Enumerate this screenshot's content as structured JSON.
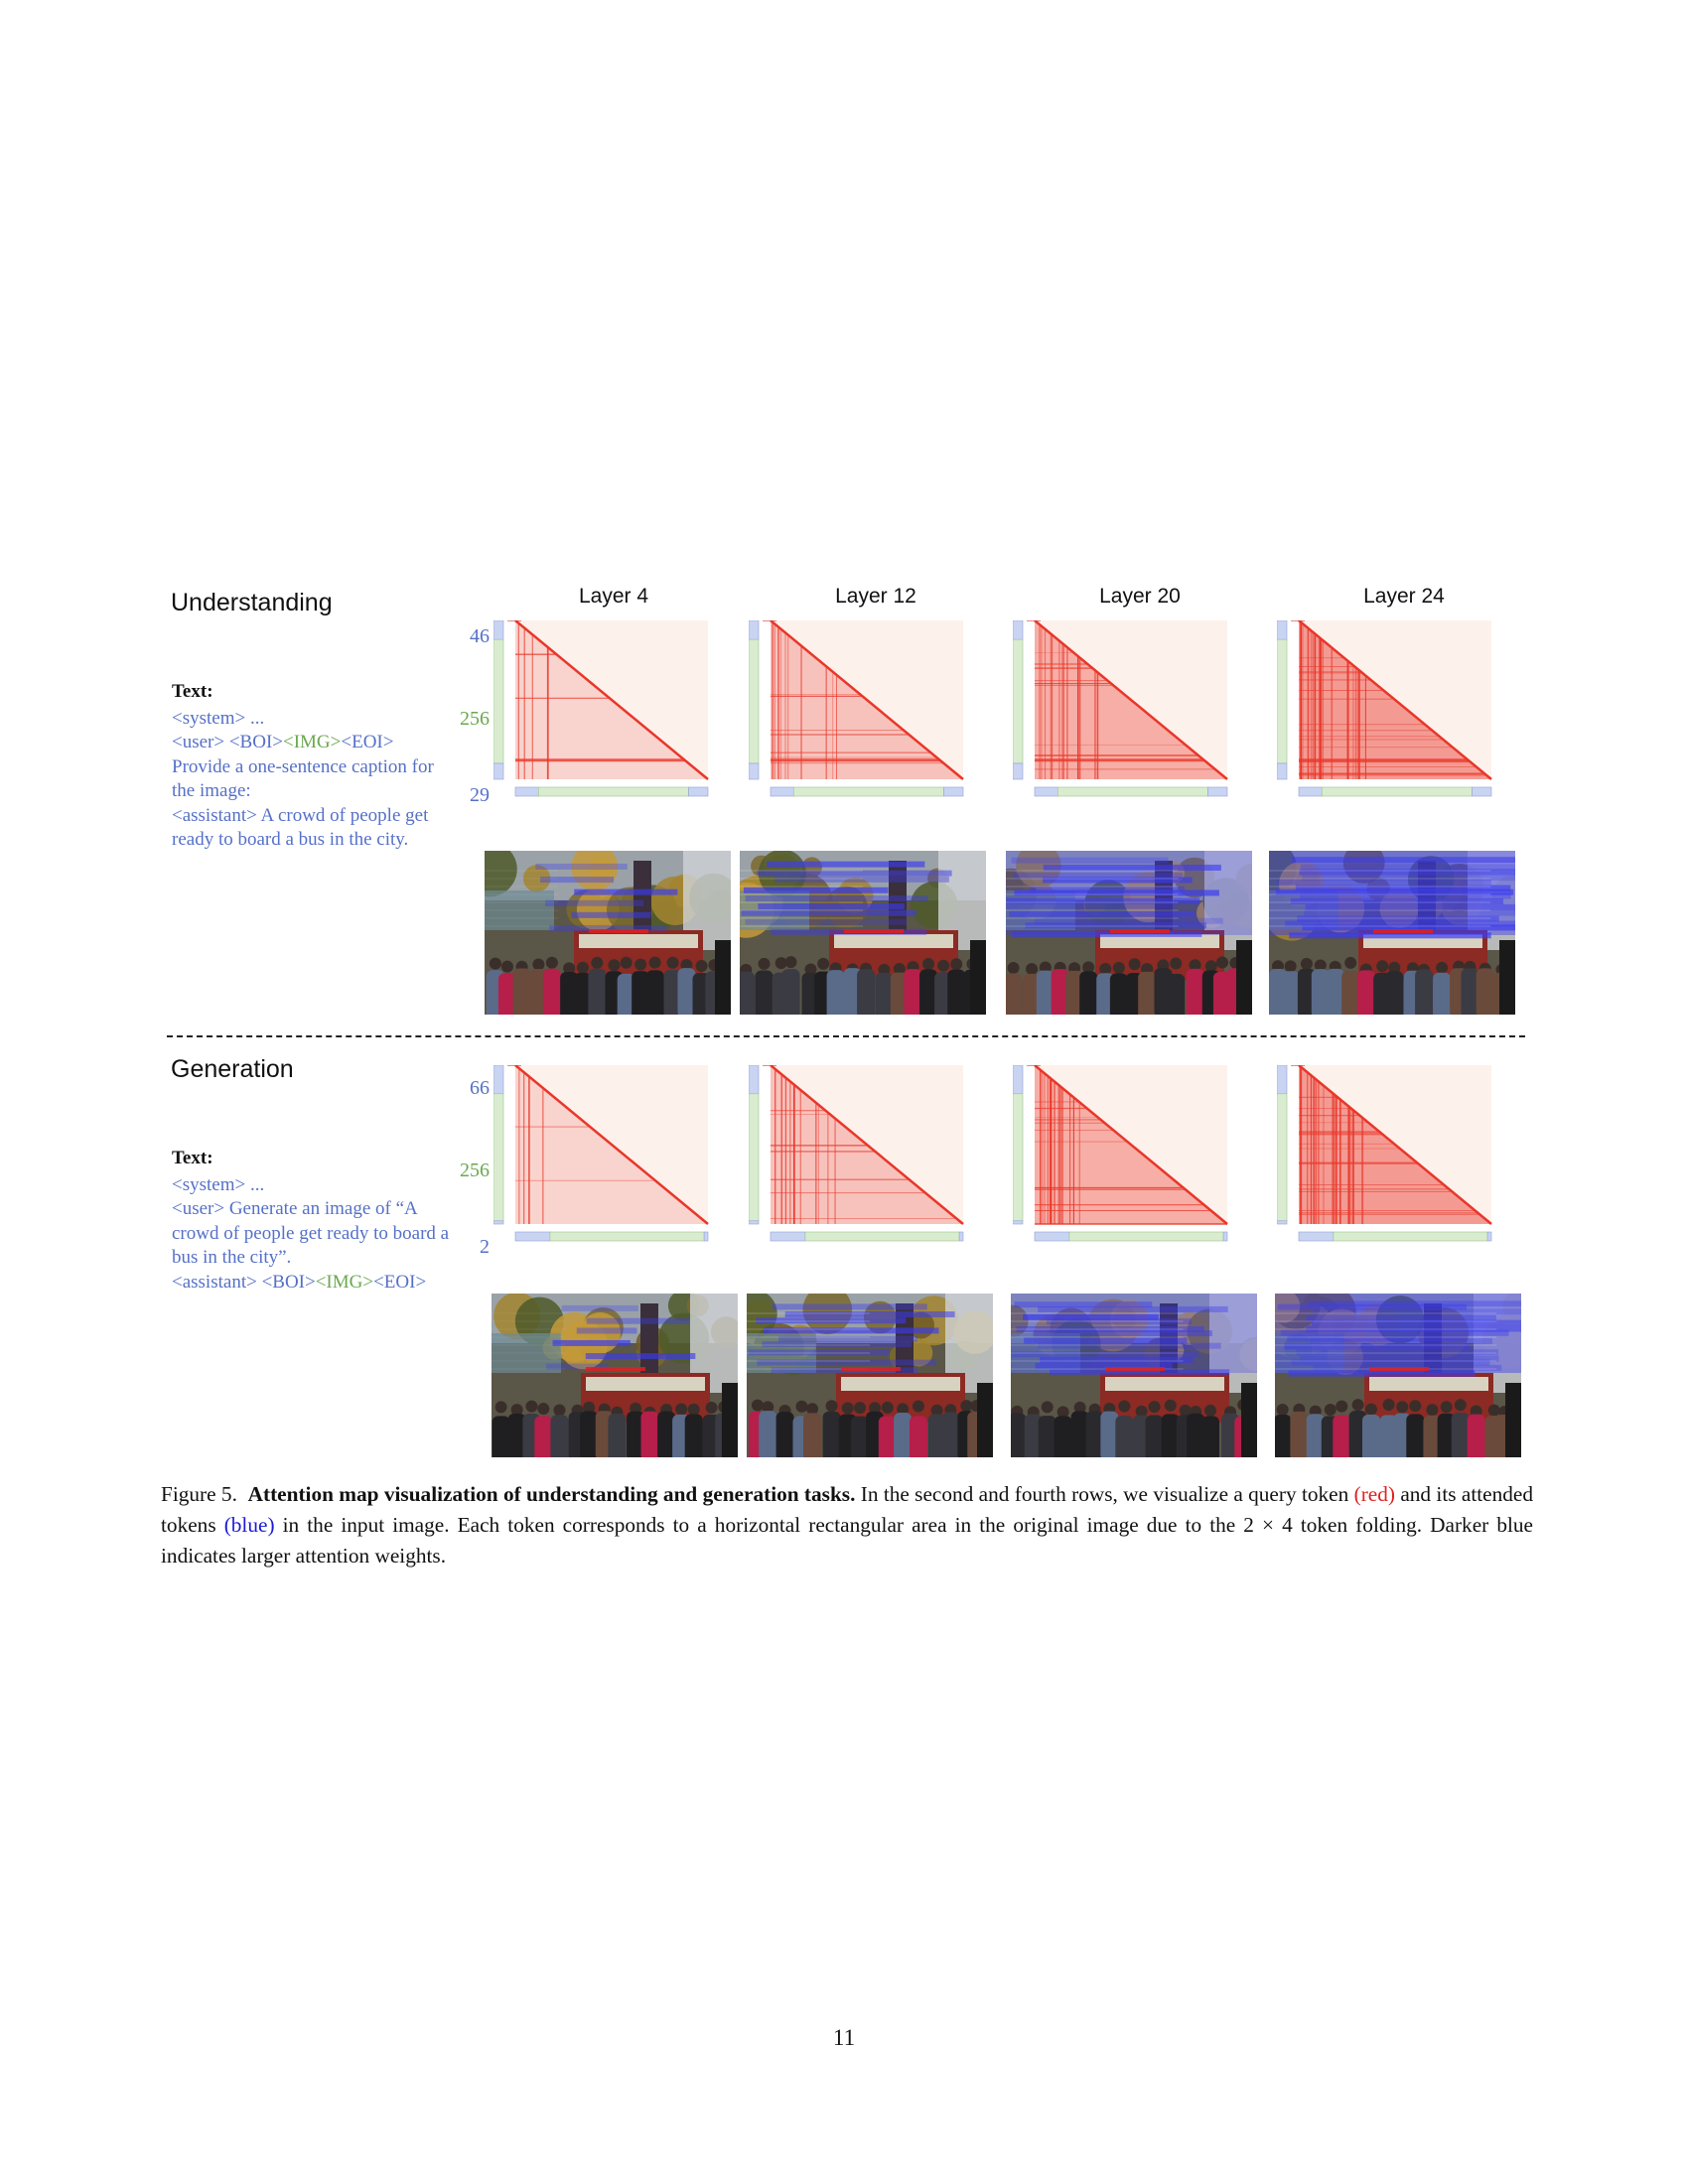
{
  "sections": {
    "understanding": {
      "title": "Understanding",
      "text_label": "Text:",
      "lines": [
        {
          "parts": [
            {
              "t": "<system> ...",
              "c": "blue"
            }
          ]
        },
        {
          "parts": [
            {
              "t": "<user> <BOI>",
              "c": "blue"
            },
            {
              "t": "<IMG>",
              "c": "green"
            },
            {
              "t": "<EOI>",
              "c": "blue"
            }
          ]
        },
        {
          "parts": [
            {
              "t": "Provide a one-sentence caption for the image:",
              "c": "blue"
            }
          ]
        },
        {
          "parts": [
            {
              "t": "<assistant> A crowd of people get ready to board a bus in the city.",
              "c": "blue"
            }
          ]
        }
      ],
      "axis": {
        "top": "46",
        "mid": "256",
        "bottom": "29"
      }
    },
    "generation": {
      "title": "Generation",
      "text_label": "Text:",
      "lines": [
        {
          "parts": [
            {
              "t": "<system> ...",
              "c": "blue"
            }
          ]
        },
        {
          "parts": [
            {
              "t": "<user> Generate an image of “A crowd of people get ready to board a bus in the city”.",
              "c": "blue"
            }
          ]
        },
        {
          "parts": [
            {
              "t": "<assistant> <BOI>",
              "c": "blue"
            },
            {
              "t": "<IMG>",
              "c": "green"
            },
            {
              "t": "<EOI>",
              "c": "blue"
            }
          ]
        }
      ],
      "axis": {
        "top": "66",
        "mid": "256",
        "bottom": "2"
      }
    }
  },
  "layers": [
    "Layer 4",
    "Layer 12",
    "Layer 20",
    "Layer 24"
  ],
  "colors": {
    "attention_red": "#e8372a",
    "attention_bg": "#fdf1ec",
    "text_token_blue": "#c9d4f3",
    "image_token_green": "#d9ecd0",
    "overlay_blue": "#3b3bf0"
  },
  "caption": {
    "prefix": "Figure 5.",
    "bold": "Attention map visualization of understanding and generation tasks.",
    "part1": " In the second and fourth rows, we visualize a query token ",
    "red": "(red)",
    "part2": " and its attended tokens ",
    "blue": "(blue)",
    "part3": " in the input image. Each token corresponds to a horizontal rectangular area in the original image due to the 2 × 4 token folding. Darker blue indicates larger attention weights."
  },
  "page_number": "11"
}
